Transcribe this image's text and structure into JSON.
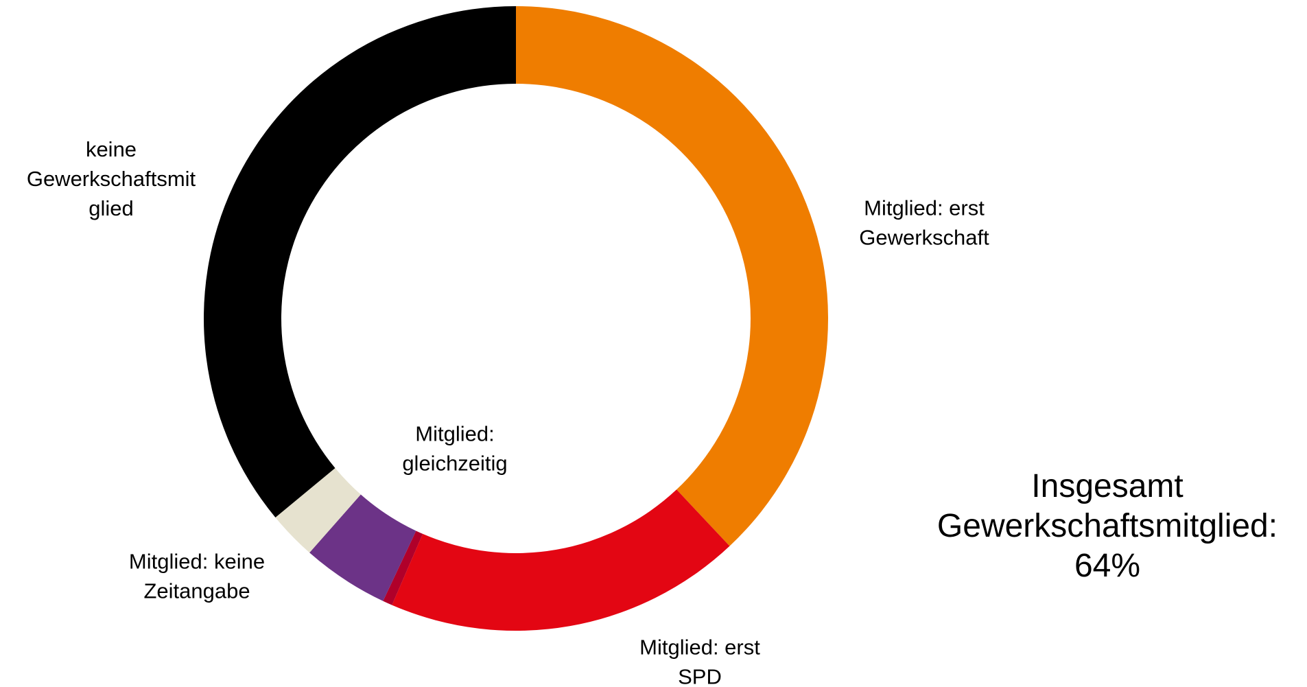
{
  "chart_data": {
    "type": "donut",
    "categories": [
      "Mitglied: erst\nGewerkschaft",
      "Mitglied: erst\nSPD",
      "Mitglied:\ngleichzeitig",
      "Mitglied: keine\nZeitangabe",
      "",
      "keine\nGewerkschaftsmit\nglied"
    ],
    "values": [
      38,
      18.5,
      0.5,
      4.5,
      2.5,
      36
    ],
    "colors": [
      "#ef7d00",
      "#e30613",
      "#b0002a",
      "#6c3387",
      "#e6e2cf",
      "#000000"
    ],
    "annotation": "Insgesamt\nGewerkschaftsmitglied:\n64%"
  }
}
